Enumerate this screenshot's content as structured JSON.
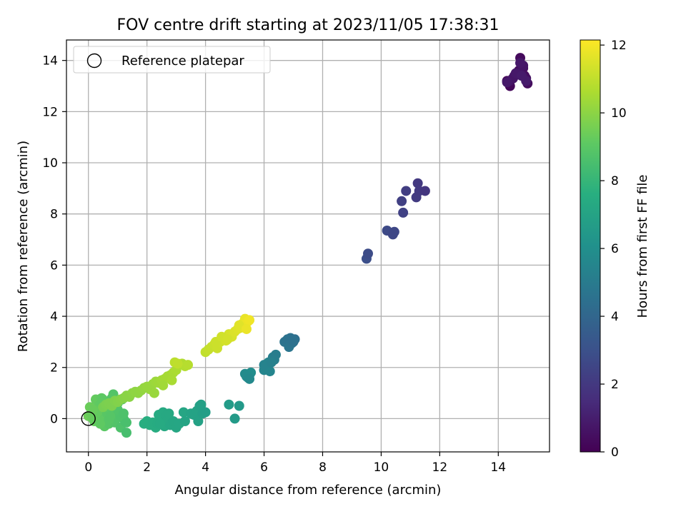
{
  "chart_data": {
    "type": "scatter",
    "title": "FOV centre drift starting at 2023/11/05 17:38:31",
    "xlabel": "Angular distance from reference (arcmin)",
    "ylabel": "Rotation from reference (arcmin)",
    "xlim": [
      -0.75,
      15.75
    ],
    "ylim": [
      -1.3,
      14.8
    ],
    "xticks": [
      0,
      2,
      4,
      6,
      8,
      10,
      12,
      14
    ],
    "yticks": [
      0,
      2,
      4,
      6,
      8,
      10,
      12,
      14
    ],
    "grid": true,
    "legend": {
      "placement": "top-left",
      "entries": [
        "Reference platepar"
      ]
    },
    "colorbar": {
      "label": "Hours from first FF file",
      "range": [
        0,
        12.15
      ],
      "ticks": [
        0,
        2,
        4,
        6,
        8,
        10,
        12
      ],
      "colormap": "viridis"
    },
    "reference_point": {
      "x": 0,
      "y": 0
    },
    "series": [
      {
        "x": [
          14.3,
          14.4,
          14.5,
          14.6,
          14.7,
          14.75,
          14.8,
          14.9,
          15.0,
          14.55,
          14.85,
          14.95,
          14.65,
          14.4,
          14.7,
          14.85,
          14.5,
          14.3,
          14.6,
          14.75,
          14.95,
          14.8
        ],
        "y": [
          13.2,
          13.0,
          13.3,
          13.5,
          13.6,
          14.1,
          13.8,
          13.4,
          13.1,
          13.4,
          13.7,
          13.3,
          13.45,
          13.2,
          13.5,
          13.8,
          13.3,
          13.15,
          13.5,
          13.9,
          13.2,
          13.4
        ],
        "hours": [
          0.1,
          0.2,
          0.2,
          0.3,
          0.3,
          0.3,
          0.4,
          0.4,
          0.4,
          0.5,
          0.5,
          0.5,
          0.6,
          0.6,
          0.7,
          0.7,
          0.7,
          0.8,
          0.8,
          0.8,
          0.9,
          0.9
        ]
      },
      {
        "x": [
          9.5,
          9.55,
          10.2,
          10.4,
          10.45,
          10.7,
          10.75,
          10.85,
          11.2,
          11.25,
          11.3,
          11.5
        ],
        "y": [
          6.25,
          6.45,
          7.35,
          7.2,
          7.3,
          8.5,
          8.05,
          8.9,
          8.65,
          9.2,
          8.9,
          8.9
        ],
        "hours": [
          2.9,
          2.8,
          2.7,
          2.6,
          2.6,
          2.3,
          2.35,
          2.2,
          2.1,
          2.0,
          2.05,
          1.9
        ]
      },
      {
        "x": [
          5.35,
          5.45,
          5.5,
          5.55,
          5.4,
          5.5,
          6.0,
          6.1,
          6.15,
          6.2,
          6.0,
          6.3,
          6.4,
          6.35,
          6.25,
          6.7,
          6.8,
          6.9,
          7.0,
          6.85,
          7.05,
          6.95,
          7.0
        ],
        "y": [
          1.75,
          1.6,
          1.7,
          1.8,
          1.65,
          1.55,
          1.9,
          2.0,
          2.2,
          1.85,
          2.1,
          2.4,
          2.5,
          2.3,
          2.2,
          3.0,
          3.1,
          3.15,
          3.0,
          2.8,
          3.1,
          2.95,
          3.05
        ],
        "hours": [
          5.8,
          5.85,
          5.75,
          5.9,
          5.8,
          5.7,
          5.5,
          5.55,
          5.45,
          5.5,
          5.4,
          5.2,
          5.1,
          5.15,
          5.3,
          4.6,
          4.55,
          4.5,
          4.45,
          4.7,
          4.4,
          4.6,
          4.5
        ]
      },
      {
        "x": [
          1.9,
          2.0,
          2.1,
          2.2,
          2.3,
          2.35,
          2.4,
          2.5,
          2.55,
          2.6,
          2.65,
          2.7,
          2.8,
          2.9,
          3.0,
          3.1,
          3.25,
          3.3,
          3.5,
          3.6,
          3.7,
          3.75,
          3.8,
          3.85,
          3.9,
          4.0,
          4.8,
          5.0,
          5.15,
          2.45,
          2.75
        ],
        "y": [
          -0.2,
          -0.1,
          -0.25,
          -0.15,
          -0.35,
          -0.2,
          0.15,
          -0.1,
          0.25,
          -0.3,
          0.1,
          -0.05,
          -0.25,
          -0.1,
          -0.35,
          -0.2,
          0.25,
          -0.1,
          0.2,
          0.15,
          0.3,
          -0.1,
          0.5,
          0.55,
          0.2,
          0.25,
          0.55,
          0.0,
          0.5,
          -0.2,
          0.2
        ],
        "hours": [
          7.6,
          7.6,
          7.55,
          7.5,
          7.5,
          7.45,
          7.4,
          7.4,
          7.35,
          7.35,
          7.3,
          7.3,
          7.25,
          7.2,
          7.2,
          7.15,
          7.1,
          7.05,
          7.0,
          6.95,
          6.95,
          6.9,
          6.85,
          6.85,
          6.8,
          6.75,
          6.6,
          6.55,
          6.5,
          7.4,
          7.3
        ]
      },
      {
        "x": [
          0.0,
          0.05,
          0.1,
          0.15,
          0.2,
          0.25,
          0.3,
          0.35,
          0.4,
          0.45,
          0.5,
          0.55,
          0.6,
          0.65,
          0.7,
          0.75,
          0.8,
          0.85,
          0.9,
          0.95,
          1.0,
          1.05,
          1.1,
          1.15,
          1.2,
          1.25,
          1.3,
          0.3,
          0.5,
          0.7,
          0.9,
          1.1,
          1.3,
          0.2,
          0.6,
          1.0,
          0.4,
          0.8,
          1.2,
          0.15,
          0.45,
          0.75
        ],
        "y": [
          0.1,
          0.45,
          0.2,
          0.0,
          0.3,
          0.75,
          0.1,
          0.5,
          0.0,
          0.8,
          0.3,
          -0.3,
          0.65,
          0.2,
          -0.2,
          0.55,
          0.4,
          0.95,
          -0.15,
          0.0,
          0.6,
          0.2,
          -0.35,
          0.75,
          0.0,
          -0.1,
          -0.55,
          0.25,
          0.75,
          -0.05,
          0.5,
          0.1,
          -0.15,
          -0.1,
          0.45,
          0.35,
          -0.2,
          0.8,
          0.2,
          0.35,
          0.6,
          0.1
        ],
        "hours": [
          9.4,
          9.35,
          9.3,
          9.3,
          9.25,
          9.2,
          9.2,
          9.15,
          9.1,
          9.1,
          9.05,
          9.0,
          9.0,
          8.95,
          8.9,
          8.9,
          8.85,
          8.8,
          8.8,
          8.75,
          8.7,
          8.7,
          8.65,
          8.6,
          8.6,
          8.55,
          8.5,
          9.2,
          9.05,
          8.9,
          8.8,
          8.7,
          8.55,
          9.25,
          9.0,
          8.75,
          9.1,
          8.85,
          8.65,
          9.3,
          9.1,
          8.9
        ]
      },
      {
        "x": [
          0.5,
          0.6,
          0.7,
          0.8,
          0.9,
          1.0,
          1.1,
          1.2,
          1.3,
          1.4,
          1.5,
          1.6,
          1.7,
          1.8,
          1.9,
          2.0,
          2.1,
          2.2,
          2.3,
          2.4,
          2.5,
          2.6,
          2.7,
          2.8,
          2.9,
          3.0,
          3.1,
          3.2,
          3.3,
          3.4,
          2.25,
          2.55,
          2.85
        ],
        "y": [
          0.45,
          0.55,
          0.6,
          0.5,
          0.7,
          0.65,
          0.75,
          0.8,
          0.9,
          0.85,
          1.0,
          1.05,
          1.0,
          1.1,
          1.2,
          1.25,
          1.15,
          1.35,
          1.45,
          1.4,
          1.5,
          1.55,
          1.65,
          1.7,
          1.8,
          1.9,
          2.1,
          2.15,
          2.05,
          2.1,
          1.0,
          1.3,
          1.5
        ],
        "hours": [
          9.6,
          9.65,
          9.7,
          9.7,
          9.75,
          9.8,
          9.85,
          9.9,
          9.95,
          9.95,
          10.0,
          10.05,
          10.05,
          10.1,
          10.15,
          10.2,
          10.2,
          10.25,
          10.3,
          10.35,
          10.4,
          10.45,
          10.5,
          10.5,
          10.55,
          10.6,
          10.65,
          10.7,
          10.75,
          10.8,
          10.25,
          10.4,
          10.55
        ]
      },
      {
        "x": [
          4.0,
          4.1,
          4.2,
          4.3,
          4.4,
          4.5,
          4.6,
          4.7,
          4.8,
          4.9,
          5.0,
          5.1,
          5.2,
          5.25,
          5.3,
          5.35,
          5.4,
          5.45,
          5.5,
          4.35,
          4.55,
          4.75,
          5.15,
          5.4,
          2.95,
          3.05
        ],
        "y": [
          2.6,
          2.7,
          2.8,
          2.9,
          2.75,
          3.0,
          3.1,
          3.05,
          3.3,
          3.2,
          3.4,
          3.5,
          3.55,
          3.7,
          3.6,
          3.9,
          3.75,
          3.8,
          3.85,
          3.0,
          3.2,
          3.1,
          3.65,
          3.5,
          2.2,
          2.15
        ],
        "hours": [
          11.0,
          11.05,
          11.1,
          11.15,
          11.2,
          11.25,
          11.3,
          11.35,
          11.4,
          11.45,
          11.5,
          11.55,
          11.6,
          11.65,
          11.7,
          11.75,
          11.8,
          11.85,
          11.9,
          11.2,
          11.3,
          11.35,
          11.6,
          11.8,
          10.9,
          10.95
        ]
      }
    ]
  }
}
